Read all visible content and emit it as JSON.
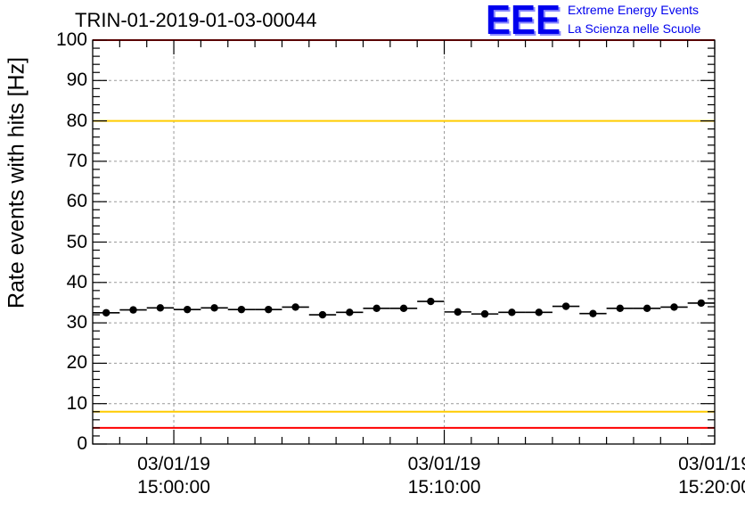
{
  "chart_data": {
    "type": "scatter",
    "title": "TRIN-01-2019-01-03-00044",
    "ylabel": "Rate events with hits [Hz]",
    "xlabel": "",
    "ylim": [
      0,
      100
    ],
    "yticks": [
      0,
      10,
      20,
      30,
      40,
      50,
      60,
      70,
      80,
      90,
      100
    ],
    "xlim": [
      "14:57:00",
      "15:20:00"
    ],
    "xticks": [
      {
        "time": "15:00:00",
        "date": "03/01/19"
      },
      {
        "time": "15:10:00",
        "date": "03/01/19"
      },
      {
        "time": "15:20:00",
        "date": "03/01/19"
      }
    ],
    "bin_width_seconds": 60,
    "grid": true,
    "series": [
      {
        "x": [
          "14:57:30",
          "14:58:30",
          "14:59:30",
          "15:00:30",
          "15:01:30",
          "15:02:30",
          "15:03:30",
          "15:04:30",
          "15:05:30",
          "15:06:30",
          "15:07:30",
          "15:08:30",
          "15:09:30",
          "15:10:30",
          "15:11:30",
          "15:12:30",
          "15:13:30",
          "15:14:30",
          "15:15:30",
          "15:16:30",
          "15:17:30",
          "15:18:30",
          "15:19:30"
        ],
        "y": [
          32.5,
          33.2,
          33.7,
          33.3,
          33.7,
          33.3,
          33.3,
          33.9,
          32.0,
          32.6,
          33.6,
          33.6,
          35.3,
          32.7,
          32.2,
          32.6,
          32.6,
          34.1,
          32.3,
          33.6,
          33.6,
          33.9,
          34.9
        ],
        "color": "#000000"
      }
    ],
    "reference_lines": [
      {
        "y": 100,
        "color": "#ff0000"
      },
      {
        "y": 80,
        "color": "#ffcc00"
      },
      {
        "y": 8,
        "color": "#ffcc00"
      },
      {
        "y": 4,
        "color": "#ff0000"
      }
    ]
  },
  "logo": {
    "mark": "EEE",
    "line1": "Extreme Energy Events",
    "line2": "La Scienza nelle Scuole",
    "color": "#0000ee"
  }
}
